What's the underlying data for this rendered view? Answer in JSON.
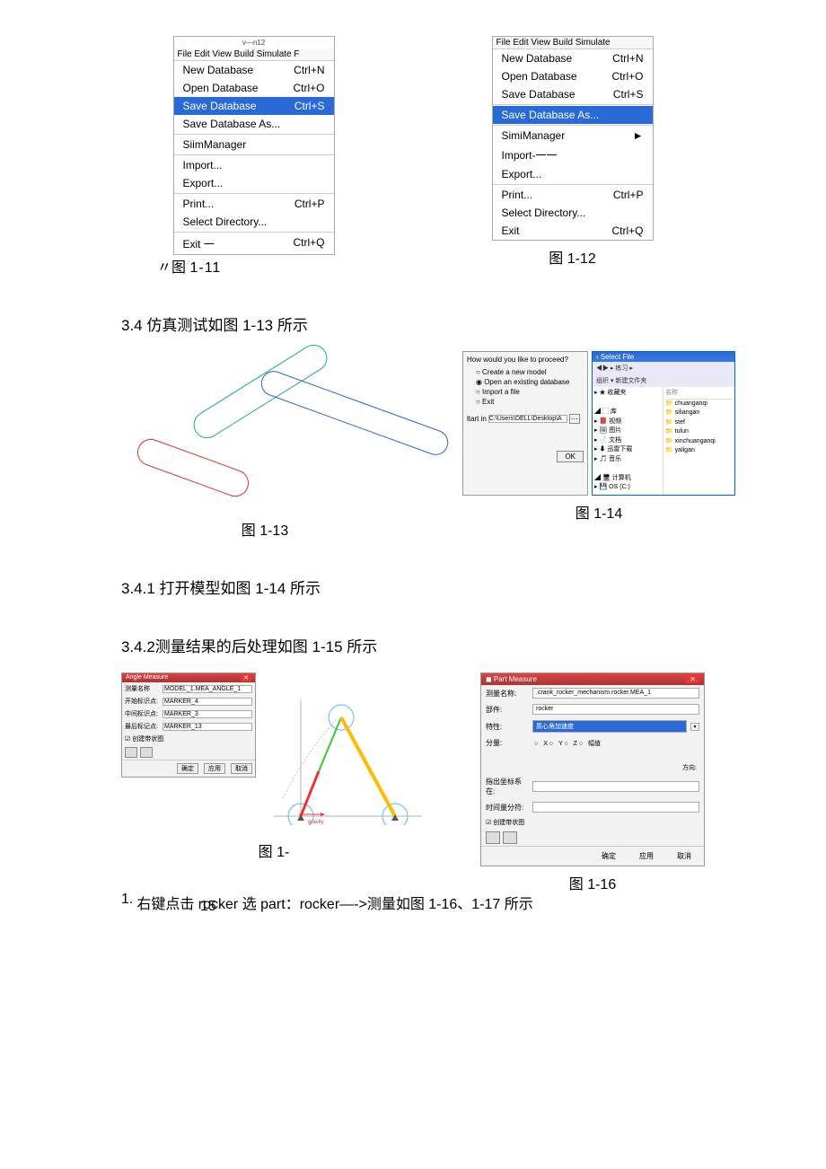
{
  "fig11": {
    "header_small": "v—n12",
    "menubar": "File Edit View Build Simulate F",
    "items": [
      {
        "label": "New Database",
        "accel": "Ctrl+N"
      },
      {
        "label": "Open Database",
        "accel": "Ctrl+O"
      },
      {
        "label": "Save Database",
        "accel": "Ctrl+S",
        "hl": true
      },
      {
        "label": "Save Database As..."
      },
      {
        "sep": true
      },
      {
        "label": "SiimManager"
      },
      {
        "sep": true
      },
      {
        "label": "Import..."
      },
      {
        "label": "Export..."
      },
      {
        "sep": true
      },
      {
        "label": "Print...",
        "accel": "Ctrl+P"
      },
      {
        "label": "Select Directory..."
      },
      {
        "sep": true
      },
      {
        "label": "Exit 一",
        "accel": "Ctrl+Q"
      }
    ],
    "caption_prefix": "〃图",
    "caption_num": "1-11"
  },
  "fig12": {
    "menubar": "File Edit View Build Simulate",
    "items": [
      {
        "label": "New Database",
        "accel": "Ctrl+N"
      },
      {
        "label": "Open Database",
        "accel": "Ctrl+O"
      },
      {
        "label": "Save Database",
        "accel": "Ctrl+S"
      },
      {
        "sep": true
      },
      {
        "label": "Save Database As...",
        "hl": true
      },
      {
        "sep": true
      },
      {
        "label": "SimiManager",
        "accel": "►"
      },
      {
        "label": "Import-一一"
      },
      {
        "label": "Export..."
      },
      {
        "sep": true
      },
      {
        "label": "Print...",
        "accel": "Ctrl+P"
      },
      {
        "label": "Select Directory..."
      },
      {
        "label": "Exit",
        "accel": "Ctrl+Q"
      }
    ],
    "caption": "图  1-12"
  },
  "section34": "3.4  仿真测试如图  1-13 所示",
  "fig13": {
    "caption": "图  1-13"
  },
  "fig14": {
    "dlgA": {
      "question": "How would you like to proceed?",
      "opts": [
        "Create a new model",
        "Open an existing database",
        "Import a file",
        "Exit"
      ],
      "selected_idx": 1,
      "startin_label": "ltart in",
      "startin_value": "C:\\Users\\DELL\\Desktop\\A   I*",
      "ok": "OK"
    },
    "dlgB": {
      "title": "‹ Select File",
      "navbar": "◀▶ ▸ 练习 ▸",
      "toolbar": "组织 ▾     新建文件夹",
      "tree": [
        "▸ ★ 收藏夹",
        "",
        "◢ ⬚ 库",
        " ▸ 📕 视频",
        " ▸ 🖼 图片",
        " ▸ 📄 文档",
        " ▸ ⬇ 迅雷下载",
        " ▸ 🎵 音乐",
        "",
        "◢ 🖥 计算机",
        " ▸ 💾 OS (C:)"
      ],
      "list_header": "名称",
      "files": [
        "chuanganqi",
        "siliangan",
        "stef",
        "tulun",
        "xinchuanganqi",
        "yaligan"
      ]
    },
    "caption": "图  1-14"
  },
  "section341": "3.4.1 打开模型如图  1-14 所示",
  "section342": "3.4.2测量结果的后处理如图  1-15 所示",
  "fig15": {
    "title": "Angle Measure",
    "rows": [
      {
        "lbl": "测量名称",
        "val": "MODEL_1.MEA_ANGLE_1"
      },
      {
        "lbl": "开始标识点:",
        "val": "MARKER_4"
      },
      {
        "lbl": "中间标识点:",
        "val": "MARKER_3"
      },
      {
        "lbl": "最后标记点:",
        "val": "MARKER_13"
      }
    ],
    "chk": "☑ 创建带状图",
    "buttons": [
      "确定",
      "应用",
      "取消"
    ],
    "gravity": "gravity",
    "caption": "图  1-",
    "caption_suffix": "15"
  },
  "fig16": {
    "title": "Part Measure",
    "rows": [
      {
        "lbl": "测量名称:",
        "val": ".crank_rocker_mechanism.rocker.MEA_1"
      },
      {
        "lbl": "部件:",
        "val": "rocker"
      },
      {
        "lbl": "特性:",
        "val": "质心角加速度",
        "hl": true,
        "dd": true
      }
    ],
    "component_lbl": "分量:",
    "radios": [
      "X",
      "Y",
      "Z",
      "幅值"
    ],
    "direction_lbl": "方向:",
    "frame_lbl": "指出坐标系在:",
    "step_lbl": "时间量分符:",
    "chk": "☑ 创建带状图",
    "buttons": [
      "确定",
      "应用",
      "取消"
    ],
    "caption": "图  1-16"
  },
  "note": {
    "num": "1.",
    "text": "右键点击  rocker 选   part：rocker—->测量如图  1-16、1-17 所示"
  }
}
